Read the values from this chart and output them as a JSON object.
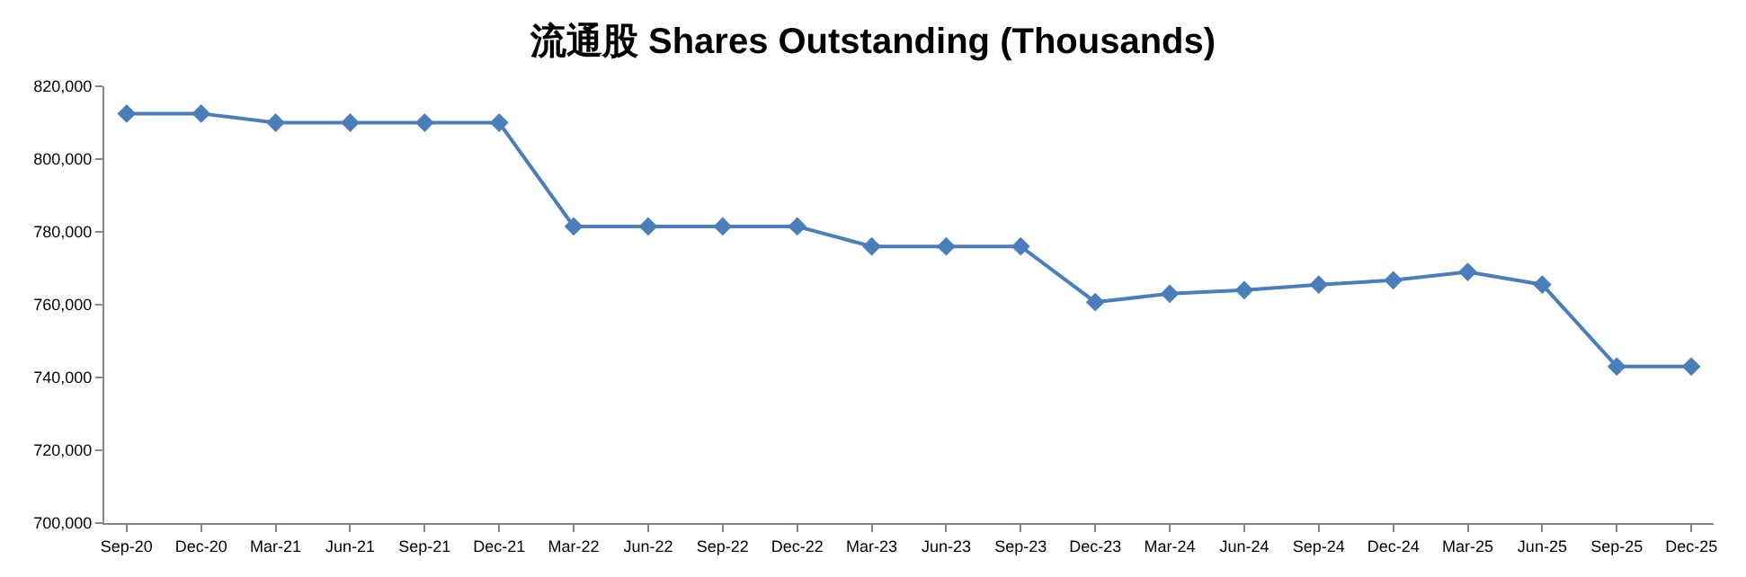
{
  "chart_data": {
    "type": "line",
    "title": "流通股 Shares Outstanding (Thousands)",
    "categories": [
      "Sep-20",
      "Dec-20",
      "Mar-21",
      "Jun-21",
      "Sep-21",
      "Dec-21",
      "Mar-22",
      "Jun-22",
      "Sep-22",
      "Dec-22",
      "Mar-23",
      "Jun-23",
      "Sep-23",
      "Dec-23",
      "Mar-24",
      "Jun-24",
      "Sep-24",
      "Dec-24",
      "Mar-25",
      "Jun-25",
      "Sep-25",
      "Dec-25"
    ],
    "series": [
      {
        "color": "#4a7ebb",
        "values": [
          812500,
          812500,
          810000,
          810000,
          810000,
          810000,
          781500,
          781500,
          781500,
          781500,
          776000,
          776000,
          776000,
          760700,
          763000,
          764000,
          765500,
          766700,
          769000,
          765500,
          743000,
          743000
        ]
      }
    ],
    "ylim": [
      700000,
      820000
    ],
    "yticks": [
      {
        "value": 700000,
        "label": "700,000"
      },
      {
        "value": 720000,
        "label": "720,000"
      },
      {
        "value": 740000,
        "label": "740,000"
      },
      {
        "value": 760000,
        "label": "760,000"
      },
      {
        "value": 780000,
        "label": "780,000"
      },
      {
        "value": 800000,
        "label": "800,000"
      },
      {
        "value": 820000,
        "label": "820,000"
      }
    ],
    "marker": "diamond",
    "line_style": "solid"
  }
}
